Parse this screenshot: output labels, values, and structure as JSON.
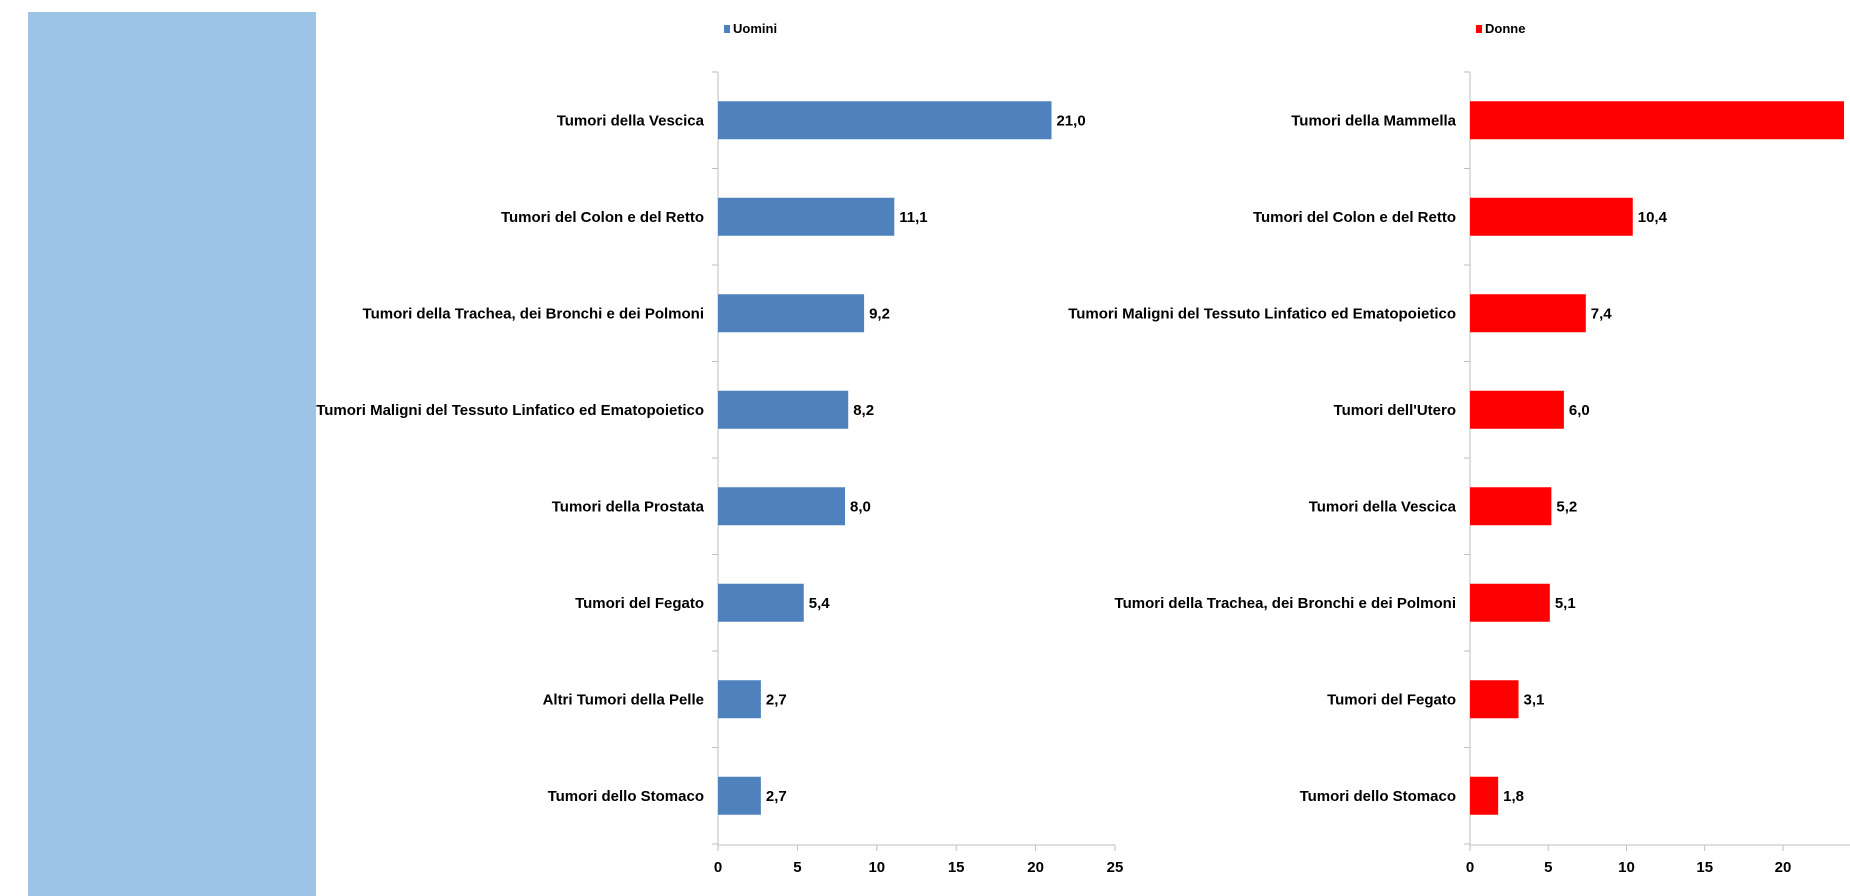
{
  "side_panel": {
    "color": "#9DC3E6"
  },
  "chart_data": [
    {
      "type": "bar",
      "orientation": "horizontal",
      "legend": "top",
      "series": [
        {
          "name": "Uomini",
          "color": "#4F81BD"
        }
      ],
      "categories": [
        "Tumori della Vescica",
        "Tumori del Colon e del Retto",
        "Tumori della Trachea, dei Bronchi e dei Polmoni",
        "Tumori Maligni del Tessuto Linfatico ed Ematopoietico",
        "Tumori della Prostata",
        "Tumori del Fegato",
        "Altri Tumori della Pelle",
        "Tumori dello Stomaco"
      ],
      "values": [
        21.0,
        11.1,
        9.2,
        8.2,
        8.0,
        5.4,
        2.7,
        2.7
      ],
      "value_labels": [
        "21,0",
        "11,1",
        "9,2",
        "8,2",
        "8,0",
        "5,4",
        "2,7",
        "2,7"
      ],
      "xlim": [
        0,
        25
      ],
      "xticks": [
        "0",
        "5",
        "10",
        "15",
        "20",
        "25"
      ],
      "grid": false
    },
    {
      "type": "bar",
      "orientation": "horizontal",
      "legend": "top",
      "series": [
        {
          "name": "Donne",
          "color": "#FF0000"
        }
      ],
      "categories": [
        "Tumori della Mammella",
        "Tumori del Colon e del Retto",
        "Tumori Maligni del Tessuto Linfatico ed Ematopoietico",
        "Tumori dell'Utero",
        "Tumori della Vescica",
        "Tumori della Trachea, dei Bronchi e dei Polmoni",
        "Tumori del Fegato",
        "Tumori dello Stomaco"
      ],
      "values": [
        23.9,
        10.4,
        7.4,
        6.0,
        5.2,
        5.1,
        3.1,
        1.8
      ],
      "value_labels": [
        "",
        "10,4",
        "7,4",
        "6,0",
        "5,2",
        "5,1",
        "3,1",
        "1,8"
      ],
      "xlim": [
        0,
        25
      ],
      "xticks": [
        "0",
        "5",
        "10",
        "15",
        "20"
      ],
      "grid": false
    }
  ]
}
